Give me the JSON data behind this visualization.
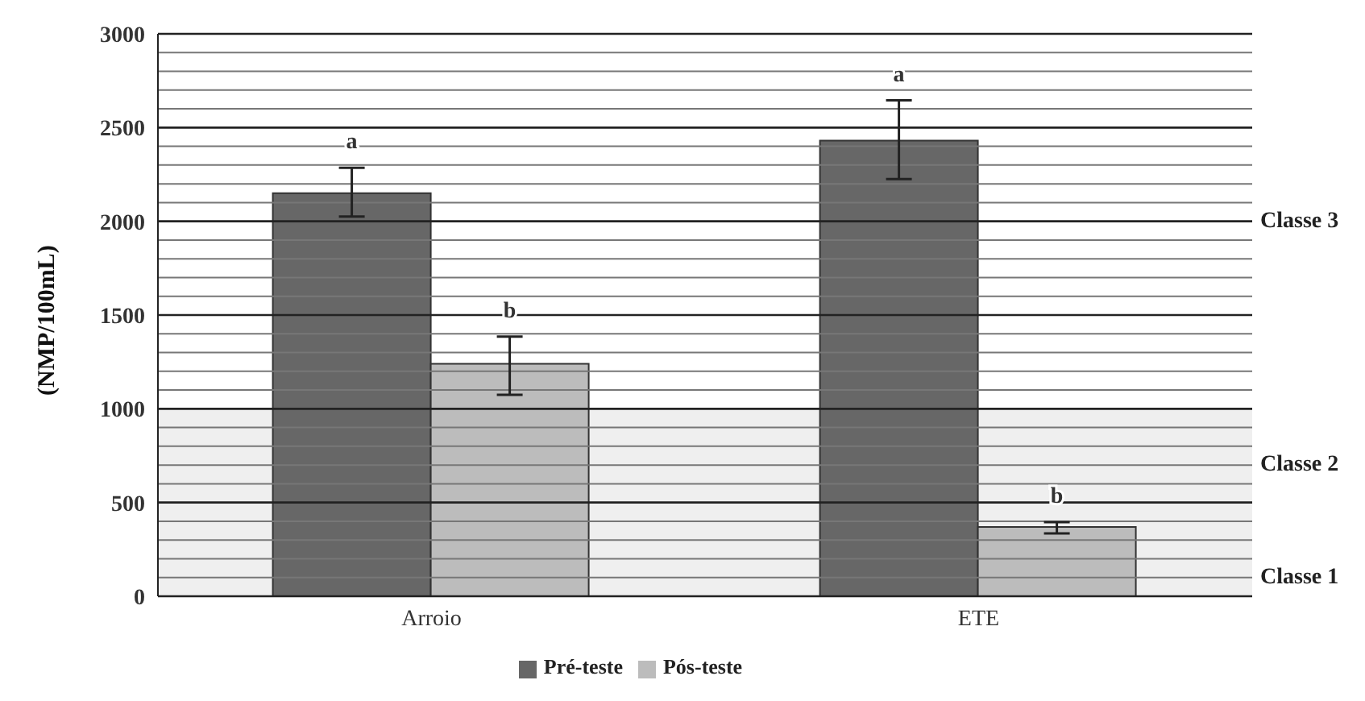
{
  "chart_data": {
    "type": "bar",
    "ylabel": "(NMP/100mL)",
    "categories": [
      "Arroio",
      "ETE"
    ],
    "series": [
      {
        "name": "Pré-teste",
        "color": "#676767",
        "values": [
          2150,
          2430
        ],
        "errors": [
          [
            2025,
            2285
          ],
          [
            2225,
            2645
          ]
        ],
        "value_labels": [
          "a",
          "a"
        ]
      },
      {
        "name": "Pós-teste",
        "color": "#bcbcbc",
        "values": [
          1240,
          370
        ],
        "errors": [
          [
            1075,
            1385
          ],
          [
            335,
            395
          ]
        ],
        "value_labels": [
          "b",
          "b"
        ]
      }
    ],
    "ylim": [
      0,
      3000
    ],
    "yticks": [
      0,
      {
        "value": 100,
        "label": null
      },
      {
        "value": 200,
        "label": null
      },
      {
        "value": 300,
        "label": null
      },
      {
        "value": 400,
        "label": null
      },
      500,
      {
        "value": 600,
        "label": null
      },
      {
        "value": 700,
        "label": null
      },
      {
        "value": 800,
        "label": null
      },
      {
        "value": 900,
        "label": null
      },
      1000,
      {
        "value": 1100,
        "label": null
      },
      {
        "value": 1200,
        "label": null
      },
      {
        "value": 1300,
        "label": null
      },
      {
        "value": 1400,
        "label": null
      },
      1500,
      {
        "value": 1600,
        "label": null
      },
      {
        "value": 1700,
        "label": null
      },
      {
        "value": 1800,
        "label": null
      },
      {
        "value": 1900,
        "label": null
      },
      2000,
      {
        "value": 2100,
        "label": null
      },
      {
        "value": 2200,
        "label": null
      },
      {
        "value": 2300,
        "label": null
      },
      {
        "value": 2400,
        "label": null
      },
      2500,
      {
        "value": 2600,
        "label": null
      },
      {
        "value": 2700,
        "label": null
      },
      {
        "value": 2800,
        "label": null
      },
      {
        "value": 2900,
        "label": null
      },
      3000
    ],
    "grid": "y",
    "legend": "bottom",
    "bands": [
      {
        "axis": "y",
        "from": 0,
        "to": 1000,
        "color": "#efefef"
      }
    ],
    "annotations": [
      "Classe 3",
      "Classe 2",
      "Classe 1"
    ]
  }
}
